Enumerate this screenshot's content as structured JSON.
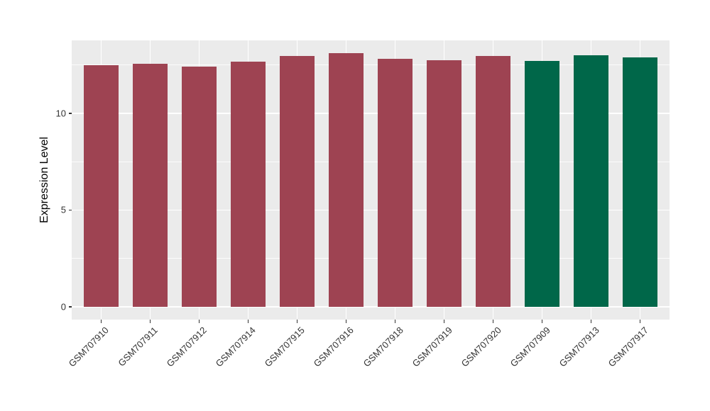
{
  "chart_data": {
    "type": "bar",
    "title": "",
    "xlabel": "",
    "ylabel": "Expression Level",
    "categories": [
      "GSM707910",
      "GSM707911",
      "GSM707912",
      "GSM707914",
      "GSM707915",
      "GSM707916",
      "GSM707918",
      "GSM707919",
      "GSM707920",
      "GSM707909",
      "GSM707913",
      "GSM707917"
    ],
    "values": [
      12.48,
      12.55,
      12.4,
      12.66,
      12.97,
      13.12,
      12.8,
      12.74,
      12.98,
      12.7,
      13.0,
      12.9
    ],
    "bar_colors": [
      "#9E4352",
      "#9E4352",
      "#9E4352",
      "#9E4352",
      "#9E4352",
      "#9E4352",
      "#9E4352",
      "#9E4352",
      "#9E4352",
      "#006749",
      "#006749",
      "#006749"
    ],
    "palette": {
      "maroon": "#9E4352",
      "green": "#006749"
    },
    "y_ticks": [
      0,
      5,
      10
    ],
    "y_minor_ticks": [
      2.5,
      7.5,
      12.5
    ],
    "ylim": [
      0,
      13.12
    ],
    "ylim_display": [
      -0.66,
      13.77
    ],
    "bar_width_fraction": 0.7,
    "legend": "none",
    "grid": "on",
    "panel_bg": "#EBEBEB",
    "grid_color": "#FFFFFF",
    "tick_label_color": "#333333",
    "axis_title_color": "#000000"
  }
}
